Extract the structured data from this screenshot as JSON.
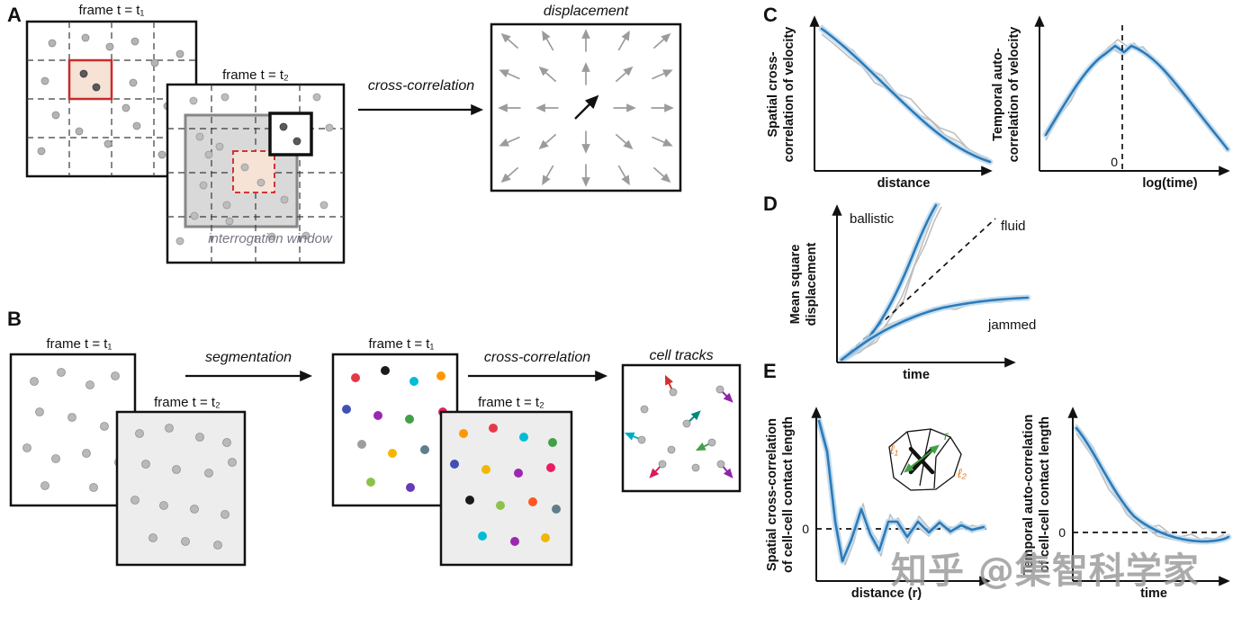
{
  "colors": {
    "figure_blue": "#2b7bba",
    "band_blue": "#bdd8ec",
    "noise_gray": "#bfbfbf",
    "highlight_red": "#c82c2c",
    "interrogation_fill": "#d9d9d9",
    "contact_orange": "#e0761c",
    "contact_green": "#3a9d3a",
    "watermark_gray": "#969696"
  },
  "panel_a": {
    "label": "A",
    "frame1_title": "frame t = t₁",
    "frame2_title": "frame t = t₂",
    "interrogation_window_label": "interrogation window",
    "cross_correlation_label": "cross-correlation",
    "displacement_title": "displacement"
  },
  "panel_b": {
    "label": "B",
    "frame1_title": "frame t = t₁",
    "frame2_title": "frame t = t₂",
    "segmentation_label": "segmentation",
    "seg_frame1_title": "frame t = t₁",
    "seg_frame2_title": "frame t = t₂",
    "cross_correlation_label": "cross-correlation",
    "cell_tracks_title": "cell tracks"
  },
  "panel_c": {
    "label": "C",
    "left_plot": {
      "ylabel_line1": "Spatial cross-",
      "ylabel_line2": "correlation of velocity",
      "xlabel": "distance"
    },
    "right_plot": {
      "ylabel_line1": "Temporal auto-",
      "ylabel_line2": "correlation of velocity",
      "xlabel": "log(time)",
      "zero_tick": "0"
    }
  },
  "panel_d": {
    "label": "D",
    "ylabel_line1": "Mean square",
    "ylabel_line2": "displacement",
    "xlabel": "time",
    "ballistic_label": "ballistic",
    "fluid_label": "fluid",
    "jammed_label": "jammed"
  },
  "panel_e": {
    "label": "E",
    "left_plot": {
      "ylabel_line1": "Spatial cross-correlation",
      "ylabel_line2": "of cell-cell contact length",
      "xlabel": "distance (r)",
      "zero_tick": "0",
      "inset": {
        "l1": "ℓ₁",
        "l2": "ℓ₂",
        "r": "r"
      }
    },
    "right_plot": {
      "ylabel_line1": "Temporal auto-correlation",
      "ylabel_line2": "of cell-cell contact length",
      "xlabel": "time",
      "zero_tick": "0"
    }
  },
  "watermark": "知乎 @集智科学家"
}
